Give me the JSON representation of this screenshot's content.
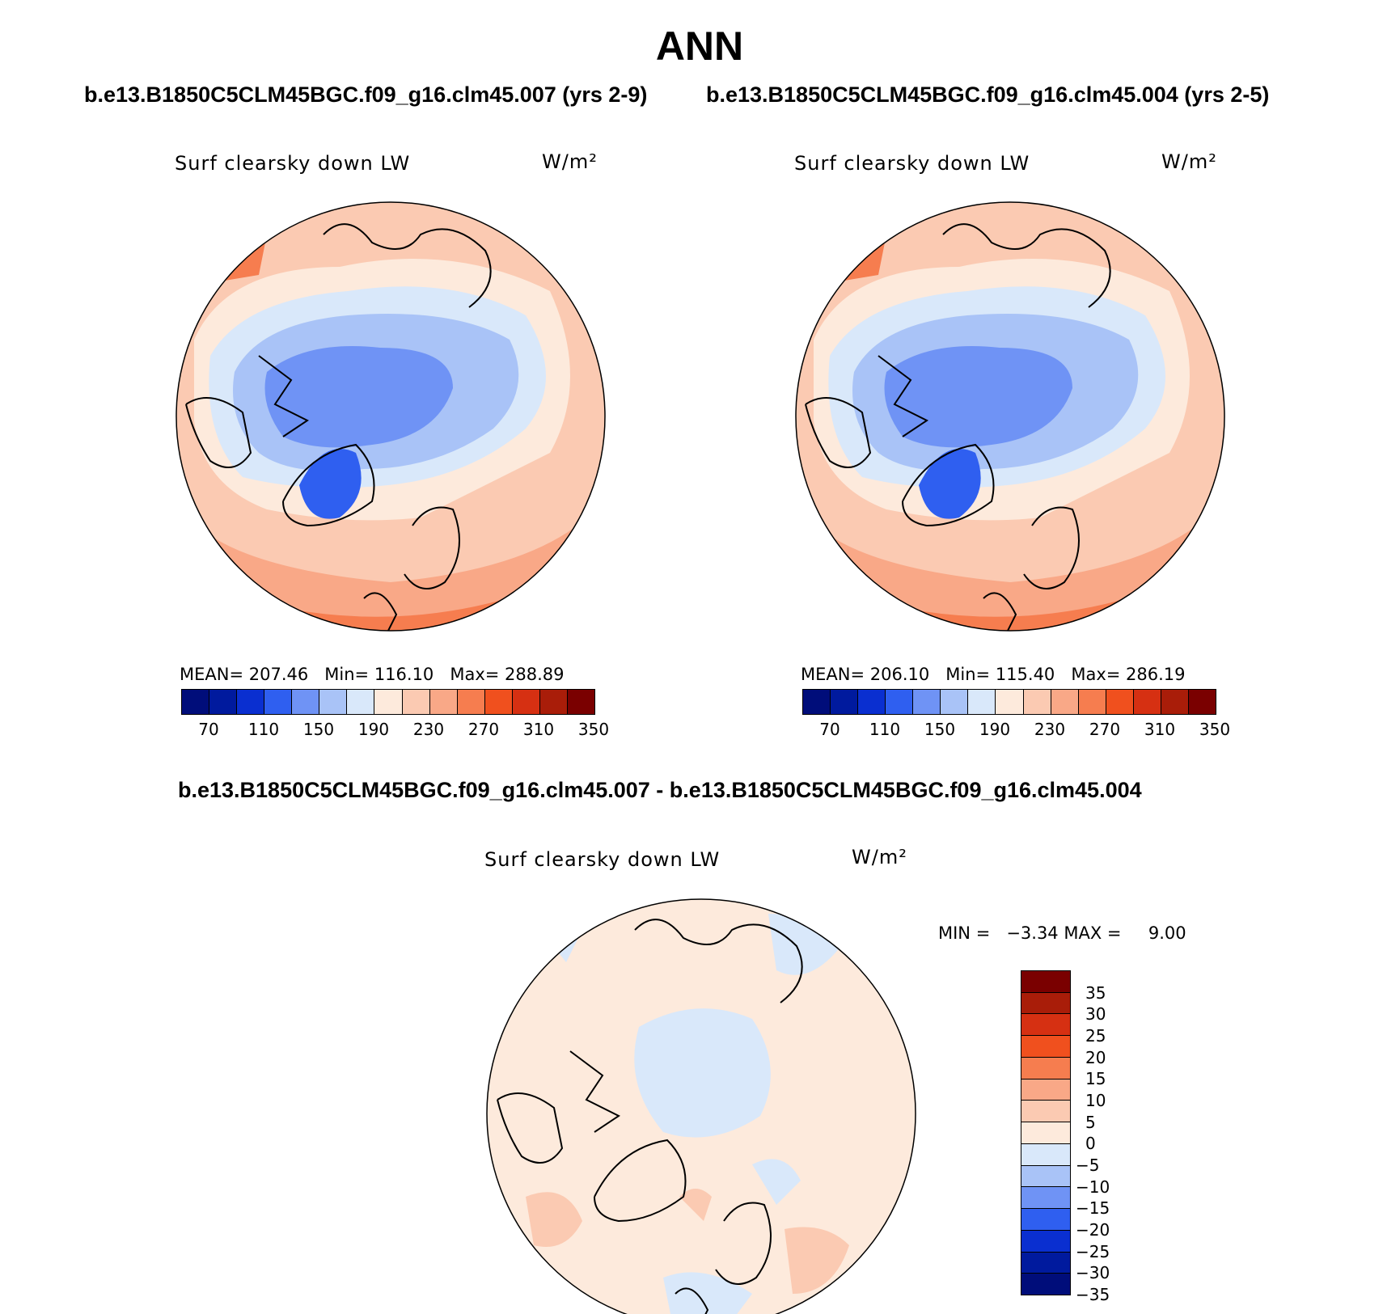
{
  "title": "ANN",
  "top_left": {
    "case_label": "b.e13.B1850C5CLM45BGC.f09_g16.clm45.007 (yrs 2-9)",
    "variable": "Surf clearsky down LW",
    "units": "W/m²",
    "mean_label": "MEAN=",
    "mean": "207.46",
    "min_label": "Min=",
    "min": "116.10",
    "max_label": "Max=",
    "max": "288.89"
  },
  "top_right": {
    "case_label": "b.e13.B1850C5CLM45BGC.f09_g16.clm45.004 (yrs 2-5)",
    "variable": "Surf clearsky down LW",
    "units": "W/m²",
    "mean_label": "MEAN=",
    "mean": "206.10",
    "min_label": "Min=",
    "min": "115.40",
    "max_label": "Max=",
    "max": "286.19"
  },
  "diff": {
    "case_label": "b.e13.B1850C5CLM45BGC.f09_g16.clm45.007 - b.e13.B1850C5CLM45BGC.f09_g16.clm45.004",
    "variable": "Surf clearsky down LW",
    "units": "W/m²",
    "minmax_text": "MIN =   −3.34 MAX =     9.00"
  },
  "colorbar_main": {
    "colors": [
      "#000d7a",
      "#001a9e",
      "#0a2fd0",
      "#2f5ff0",
      "#6f93f5",
      "#a9c3f7",
      "#d9e8fa",
      "#fdeadc",
      "#fbcab2",
      "#f9a887",
      "#f67d4f",
      "#f0501e",
      "#d63012",
      "#a91d09",
      "#7a0000"
    ],
    "tick_labels": [
      "70",
      "110",
      "150",
      "190",
      "230",
      "270",
      "310",
      "350"
    ]
  },
  "colorbar_diff": {
    "colors": [
      "#000d7a",
      "#001a9e",
      "#0a2fd0",
      "#2f5ff0",
      "#6f93f5",
      "#a9c3f7",
      "#d9e8fa",
      "#fdeadc",
      "#fbcab2",
      "#f9a887",
      "#f67d4f",
      "#f0501e",
      "#d63012",
      "#a91d09",
      "#7a0000"
    ],
    "tick_labels": [
      "35",
      "30",
      "25",
      "20",
      "15",
      "10",
      "5",
      "0",
      "−5",
      "−10",
      "−15",
      "−20",
      "−25",
      "−30",
      "−35"
    ]
  }
}
